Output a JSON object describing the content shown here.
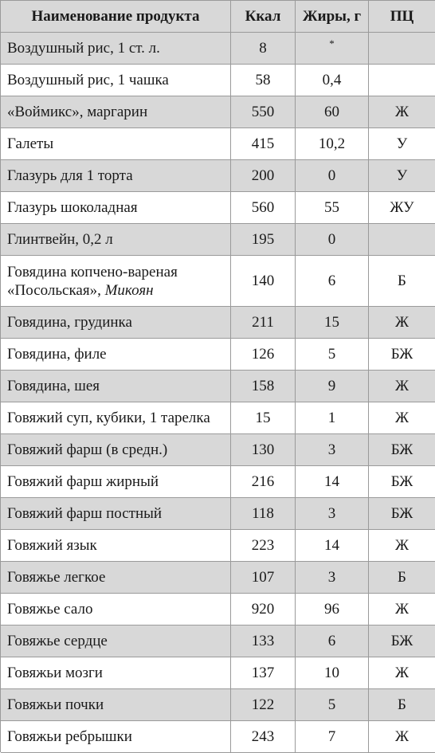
{
  "header": {
    "name": "Наименование продукта",
    "kcal": "Ккал",
    "fat": "Жиры, г",
    "group": "ПЦ"
  },
  "rows": [
    {
      "name": "Воздушный рис, 1 ст. л.",
      "kcal": "8",
      "fat": "*",
      "group": ""
    },
    {
      "name": "Воздушный рис, 1 чашка",
      "kcal": "58",
      "fat": "0,4",
      "group": ""
    },
    {
      "name": "«Воймикс», маргарин",
      "kcal": "550",
      "fat": "60",
      "group": "Ж"
    },
    {
      "name": "Галеты",
      "kcal": "415",
      "fat": "10,2",
      "group": "У"
    },
    {
      "name": "Глазурь для 1 торта",
      "kcal": "200",
      "fat": "0",
      "group": "У"
    },
    {
      "name": "Глазурь шоколадная",
      "kcal": "560",
      "fat": "55",
      "group": "ЖУ"
    },
    {
      "name": "Глинтвейн, 0,2 л",
      "kcal": "195",
      "fat": "0",
      "group": ""
    },
    {
      "name_line1": "Говядина копчено-вареная",
      "name_line2a": "«Посольская», ",
      "name_line2b": "Микоян",
      "kcal": "140",
      "fat": "6",
      "group": "Б"
    },
    {
      "name": "Говядина, грудинка",
      "kcal": "211",
      "fat": "15",
      "group": "Ж"
    },
    {
      "name": "Говядина, филе",
      "kcal": "126",
      "fat": "5",
      "group": "БЖ"
    },
    {
      "name": "Говядина, шея",
      "kcal": "158",
      "fat": "9",
      "group": "Ж"
    },
    {
      "name": "Говяжий суп, кубики, 1 тарелка",
      "kcal": "15",
      "fat": "1",
      "group": "Ж"
    },
    {
      "name": "Говяжий фарш (в средн.)",
      "kcal": "130",
      "fat": "3",
      "group": "БЖ"
    },
    {
      "name": "Говяжий фарш жирный",
      "kcal": "216",
      "fat": "14",
      "group": "БЖ"
    },
    {
      "name": "Говяжий фарш постный",
      "kcal": "118",
      "fat": "3",
      "group": "БЖ"
    },
    {
      "name": "Говяжий язык",
      "kcal": "223",
      "fat": "14",
      "group": "Ж"
    },
    {
      "name": "Говяжье легкое",
      "kcal": "107",
      "fat": "3",
      "group": "Б"
    },
    {
      "name": "Говяжье сало",
      "kcal": "920",
      "fat": "96",
      "group": "Ж"
    },
    {
      "name": "Говяжье сердце",
      "kcal": "133",
      "fat": "6",
      "group": "БЖ"
    },
    {
      "name": "Говяжьи мозги",
      "kcal": "137",
      "fat": "10",
      "group": "Ж"
    },
    {
      "name": "Говяжьи почки",
      "kcal": "122",
      "fat": "5",
      "group": "Б"
    },
    {
      "name": "Говяжьи ребрышки",
      "kcal": "243",
      "fat": "7",
      "group": "Ж"
    }
  ]
}
